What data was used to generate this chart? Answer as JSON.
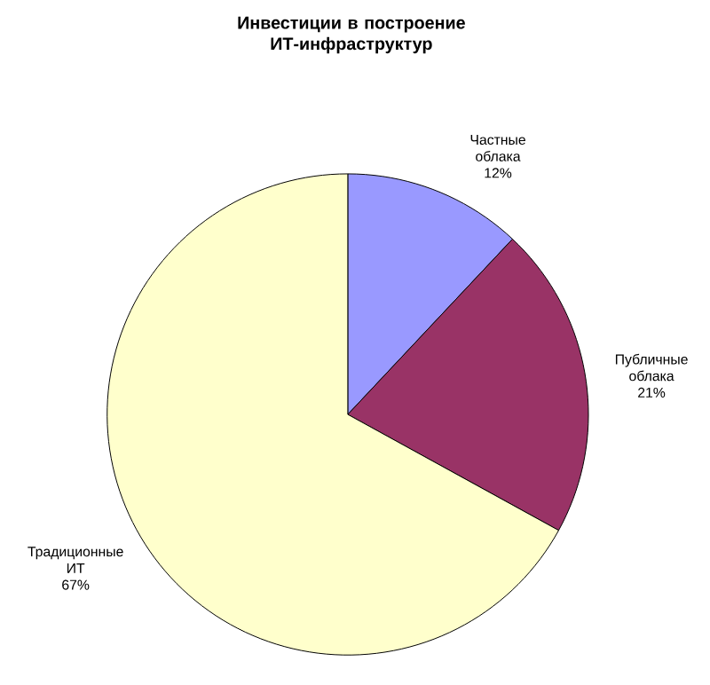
{
  "chart_data": {
    "type": "pie",
    "title": "Инвестиции в построение ИТ-инфраструктур",
    "categories": [
      "Частные облака",
      "Публичные облака",
      "Традиционные ИТ"
    ],
    "values": [
      12,
      21,
      67
    ],
    "colors": [
      "#9999ff",
      "#993366",
      "#ffffcc"
    ],
    "value_labels": [
      "12%",
      "21%",
      "67%"
    ]
  }
}
